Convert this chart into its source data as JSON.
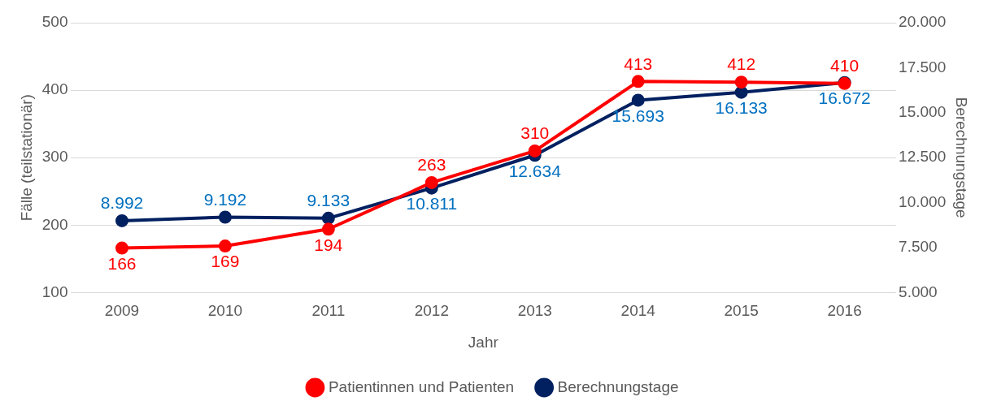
{
  "chart_data": {
    "type": "line",
    "xlabel": "Jahr",
    "ylabel": "Fälle (teilstationär)",
    "y2label": "Berechnungstage",
    "categories": [
      "2009",
      "2010",
      "2011",
      "2012",
      "2013",
      "2014",
      "2015",
      "2016"
    ],
    "series": [
      {
        "name": "Patientinnen und Patienten",
        "color": "#ff0000",
        "values": [
          166,
          169,
          194,
          263,
          310,
          413,
          412,
          410
        ],
        "value_labels": [
          "166",
          "169",
          "194",
          "263",
          "310",
          "413",
          "412",
          "410"
        ]
      },
      {
        "name": "Berechnungstage",
        "color": "#002060",
        "axis": "y2",
        "values": [
          8992,
          9192,
          9133,
          10811,
          12634,
          15693,
          16133,
          16672
        ],
        "value_labels": [
          "8.992",
          "9.192",
          "9.133",
          "10.811",
          "12.634",
          "15.693",
          "16.133",
          "16.672"
        ]
      }
    ],
    "ylim": [
      100,
      500
    ],
    "yticks": [
      100,
      200,
      300,
      400,
      500
    ],
    "y2lim": [
      5000,
      20000
    ],
    "y2ticks": [
      {
        "value": 5000,
        "label": "5.000"
      },
      {
        "value": 7500,
        "label": "7.500"
      },
      {
        "value": 10000,
        "label": "10.000"
      },
      {
        "value": 12500,
        "label": "12.500"
      },
      {
        "value": 15000,
        "label": "15.000"
      },
      {
        "value": 17500,
        "label": "17.500"
      },
      {
        "value": 20000,
        "label": "20.000"
      }
    ],
    "grid": "y",
    "legend": "bottom",
    "marker": "circle",
    "line_style": "solid"
  }
}
